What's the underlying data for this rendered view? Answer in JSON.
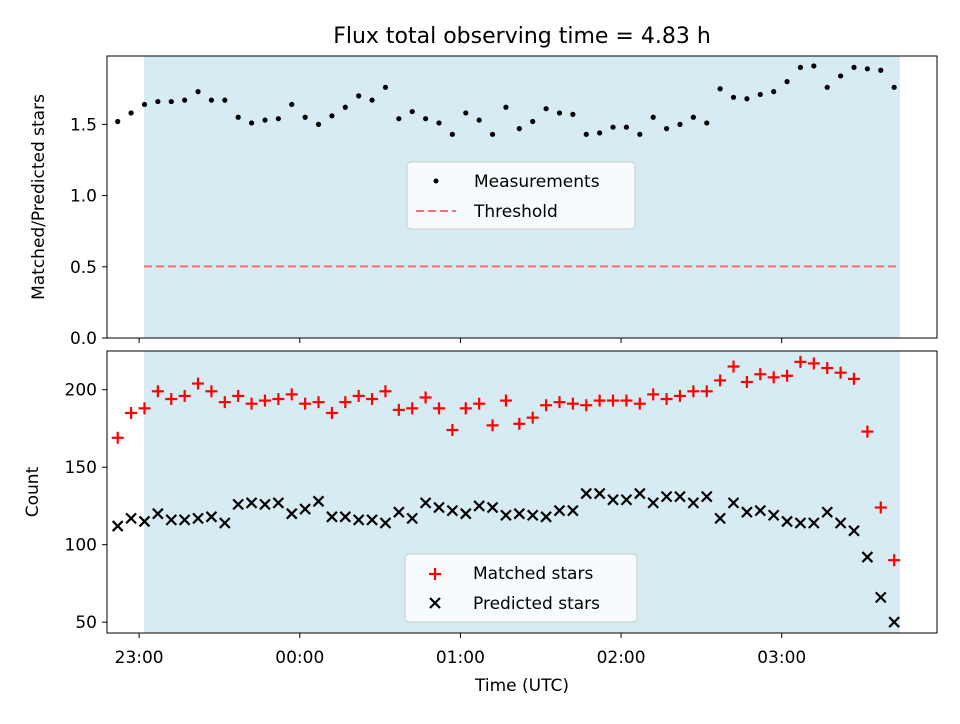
{
  "chart_data": [
    {
      "type": "scatter",
      "title": "Flux total observing time = 4.83 h",
      "xlabel": "",
      "ylabel": "Matched/Predicted stars",
      "xlim": [
        "22:48",
        "03:58"
      ],
      "ylim": [
        0,
        1.98
      ],
      "yticks": [
        0.0,
        0.5,
        1.0,
        1.5
      ],
      "ytick_labels": [
        "0.0",
        "0.5",
        "1.0",
        "1.5"
      ],
      "shaded_span": [
        "22:52",
        "03:42"
      ],
      "shaded_color": "#add8e6",
      "legend_position": "center",
      "series": [
        {
          "name": "Measurements",
          "marker": "dot",
          "color": "#000000",
          "x": [
            "22:52",
            "22:57",
            "23:02",
            "23:07",
            "23:12",
            "23:17",
            "23:22",
            "23:27",
            "23:32",
            "23:37",
            "23:42",
            "23:47",
            "23:52",
            "23:57",
            "00:02",
            "00:07",
            "00:12",
            "00:17",
            "00:22",
            "00:27",
            "00:32",
            "00:37",
            "00:42",
            "00:47",
            "00:52",
            "00:57",
            "01:02",
            "01:07",
            "01:12",
            "01:17",
            "01:22",
            "01:27",
            "01:32",
            "01:37",
            "01:42",
            "01:47",
            "01:52",
            "01:57",
            "02:02",
            "02:07",
            "02:12",
            "02:17",
            "02:22",
            "02:27",
            "02:32",
            "02:37",
            "02:42",
            "02:47",
            "02:52",
            "02:57",
            "03:02",
            "03:07",
            "03:12",
            "03:17",
            "03:22",
            "03:27",
            "03:32",
            "03:37",
            "03:42"
          ],
          "y": [
            1.52,
            1.58,
            1.64,
            1.66,
            1.66,
            1.67,
            1.73,
            1.67,
            1.67,
            1.55,
            1.51,
            1.53,
            1.54,
            1.64,
            1.55,
            1.5,
            1.56,
            1.62,
            1.7,
            1.67,
            1.76,
            1.54,
            1.59,
            1.54,
            1.51,
            1.43,
            1.58,
            1.53,
            1.43,
            1.62,
            1.47,
            1.52,
            1.61,
            1.58,
            1.57,
            1.43,
            1.44,
            1.48,
            1.48,
            1.43,
            1.55,
            1.47,
            1.5,
            1.55,
            1.51,
            1.75,
            1.69,
            1.68,
            1.71,
            1.73,
            1.8,
            1.9,
            1.91,
            1.76,
            1.84,
            1.9,
            1.89,
            1.88,
            1.76
          ]
        },
        {
          "name": "Threshold",
          "marker": "dashed-line",
          "color": "#ff6b6b",
          "y_constant": 0.5
        }
      ]
    },
    {
      "type": "scatter",
      "title": "",
      "xlabel": "Time (UTC)",
      "ylabel": "Count",
      "xlim": [
        "22:48",
        "03:58"
      ],
      "ylim": [
        43,
        225
      ],
      "yticks": [
        50,
        100,
        150,
        200
      ],
      "ytick_labels": [
        "50",
        "100",
        "150",
        "200"
      ],
      "xtick_labels": [
        "23:00",
        "00:00",
        "01:00",
        "02:00",
        "03:00"
      ],
      "shaded_span": [
        "22:52",
        "03:42"
      ],
      "shaded_color": "#add8e6",
      "legend_position": "lower center",
      "series": [
        {
          "name": "Matched stars",
          "marker": "plus",
          "color": "#ff0000",
          "x": [
            "22:52",
            "22:57",
            "23:02",
            "23:07",
            "23:12",
            "23:17",
            "23:22",
            "23:27",
            "23:32",
            "23:37",
            "23:42",
            "23:47",
            "23:52",
            "23:57",
            "00:02",
            "00:07",
            "00:12",
            "00:17",
            "00:22",
            "00:27",
            "00:32",
            "00:37",
            "00:42",
            "00:47",
            "00:52",
            "00:57",
            "01:02",
            "01:07",
            "01:12",
            "01:17",
            "01:22",
            "01:27",
            "01:32",
            "01:37",
            "01:42",
            "01:47",
            "01:52",
            "01:57",
            "02:02",
            "02:07",
            "02:12",
            "02:17",
            "02:22",
            "02:27",
            "02:32",
            "02:37",
            "02:42",
            "02:47",
            "02:52",
            "02:57",
            "03:02",
            "03:07",
            "03:12",
            "03:17",
            "03:22",
            "03:27",
            "03:32",
            "03:37",
            "03:42"
          ],
          "y": [
            169,
            185,
            188,
            199,
            194,
            196,
            204,
            199,
            192,
            196,
            191,
            193,
            194,
            197,
            191,
            192,
            185,
            192,
            196,
            194,
            199,
            187,
            188,
            195,
            188,
            174,
            188,
            191,
            177,
            193,
            178,
            182,
            190,
            192,
            191,
            190,
            193,
            193,
            193,
            191,
            197,
            194,
            196,
            199,
            199,
            206,
            215,
            205,
            210,
            208,
            209,
            218,
            217,
            214,
            211,
            207,
            173,
            124,
            90
          ]
        },
        {
          "name": "Predicted stars",
          "marker": "x",
          "color": "#000000",
          "x": [
            "22:52",
            "22:57",
            "23:02",
            "23:07",
            "23:12",
            "23:17",
            "23:22",
            "23:27",
            "23:32",
            "23:37",
            "23:42",
            "23:47",
            "23:52",
            "23:57",
            "00:02",
            "00:07",
            "00:12",
            "00:17",
            "00:22",
            "00:27",
            "00:32",
            "00:37",
            "00:42",
            "00:47",
            "00:52",
            "00:57",
            "01:02",
            "01:07",
            "01:12",
            "01:17",
            "01:22",
            "01:27",
            "01:32",
            "01:37",
            "01:42",
            "01:47",
            "01:52",
            "01:57",
            "02:02",
            "02:07",
            "02:12",
            "02:17",
            "02:22",
            "02:27",
            "02:32",
            "02:37",
            "02:42",
            "02:47",
            "02:52",
            "02:57",
            "03:02",
            "03:07",
            "03:12",
            "03:17",
            "03:22",
            "03:27",
            "03:32",
            "03:37",
            "03:42"
          ],
          "y": [
            112,
            117,
            115,
            120,
            116,
            116,
            117,
            118,
            114,
            126,
            127,
            126,
            127,
            120,
            123,
            128,
            118,
            118,
            116,
            116,
            114,
            121,
            117,
            127,
            124,
            122,
            120,
            125,
            124,
            119,
            120,
            119,
            118,
            122,
            122,
            133,
            133,
            129,
            129,
            133,
            127,
            131,
            131,
            127,
            131,
            117,
            127,
            121,
            122,
            119,
            115,
            114,
            114,
            121,
            114,
            109,
            92,
            66,
            50
          ]
        }
      ]
    }
  ]
}
